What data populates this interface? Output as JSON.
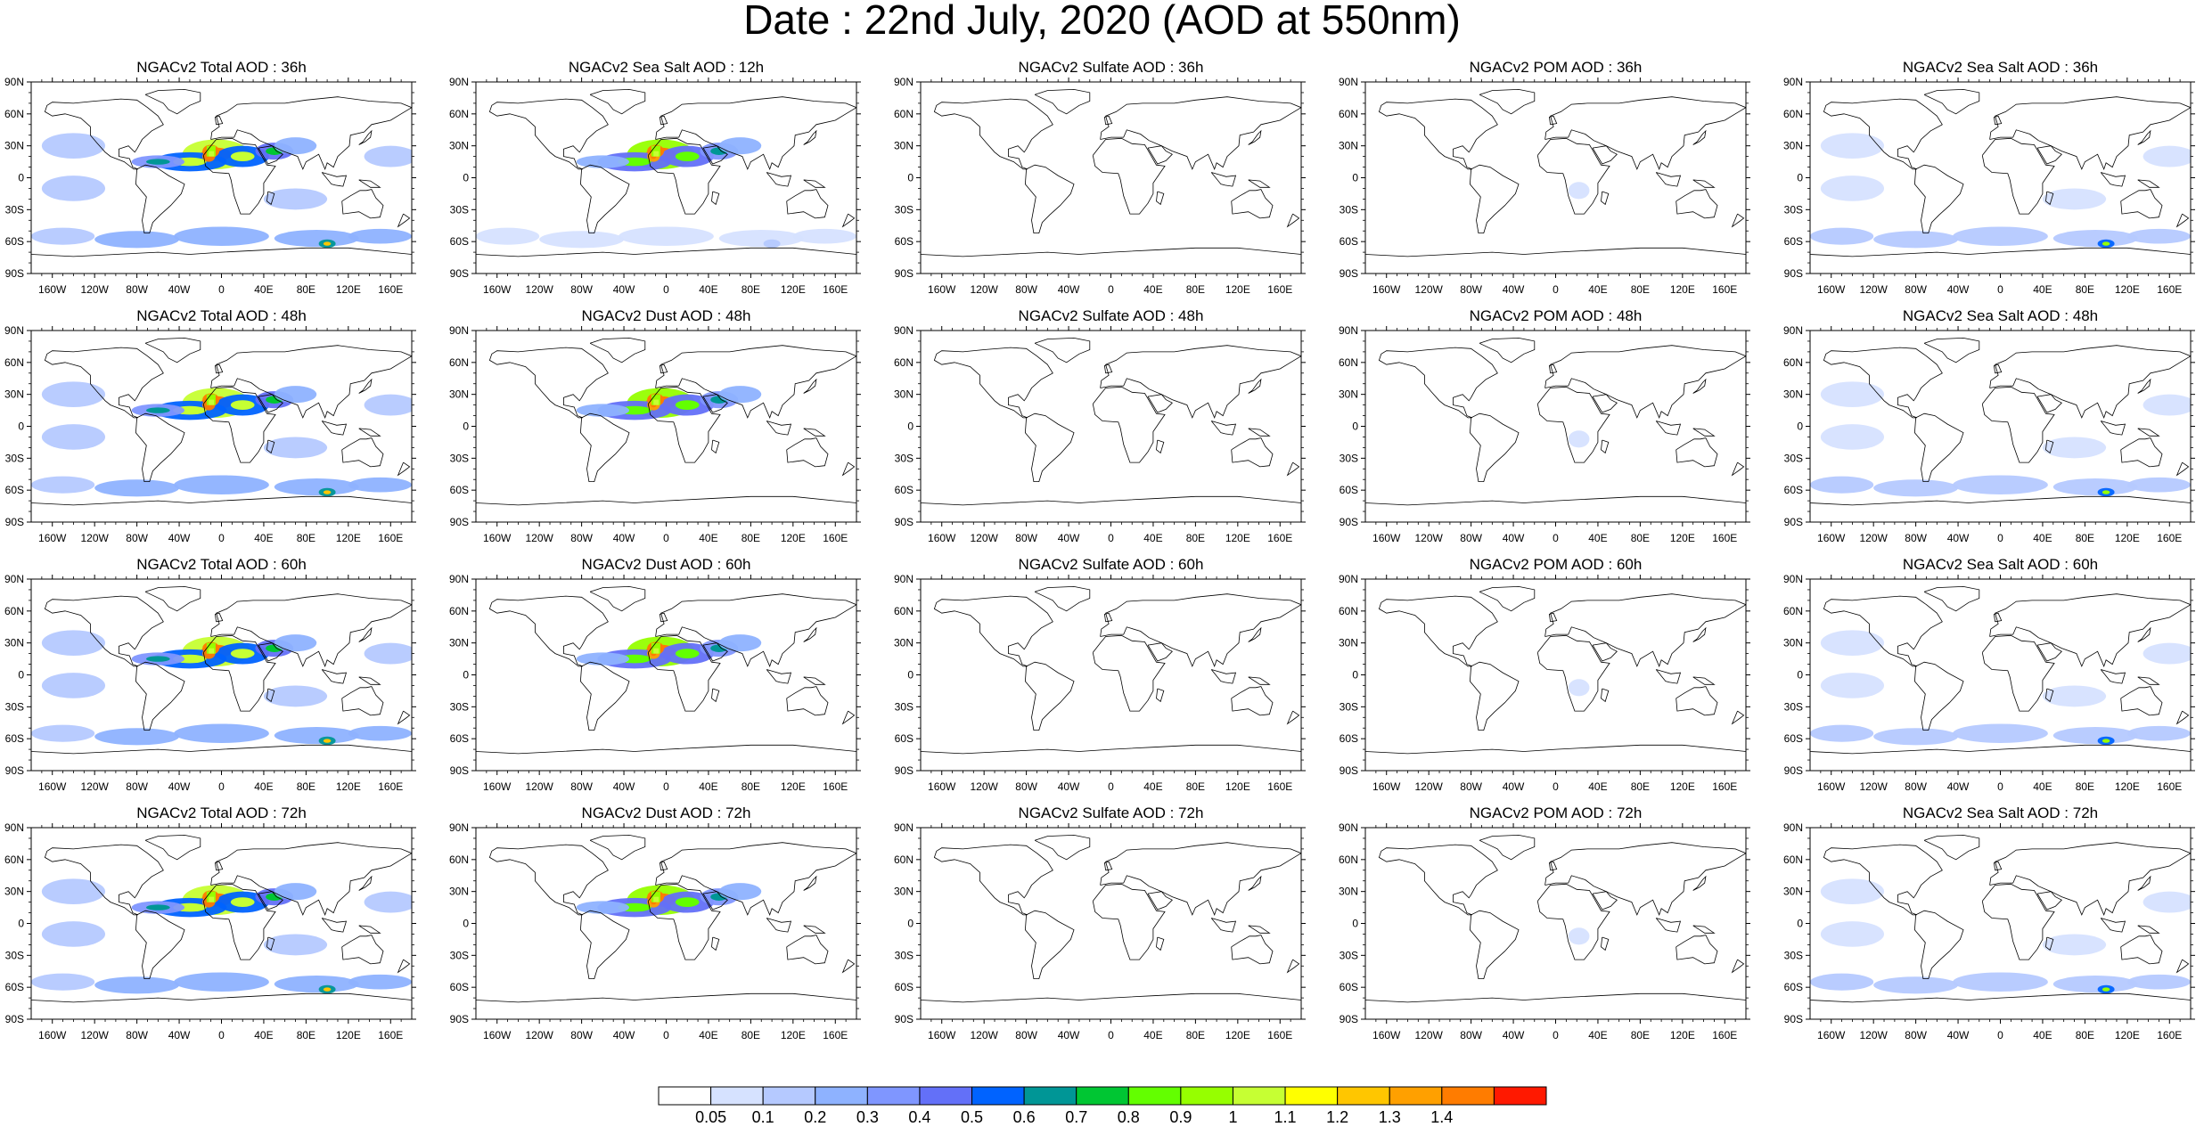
{
  "title": "Date : 22nd July, 2020 (AOD at 550nm)",
  "panels": [
    [
      "NGACv2 Total AOD : 36h",
      "NGACv2 Sea Salt  AOD : 12h",
      "NGACv2 Sulfate AOD : 36h",
      "NGACv2 POM AOD : 36h",
      "NGACv2 Sea Salt AOD : 36h"
    ],
    [
      "NGACv2 Total AOD : 48h",
      "NGACv2 Dust AOD : 48h",
      "NGACv2 Sulfate AOD : 48h",
      "NGACv2 POM AOD : 48h",
      "NGACv2 Sea Salt AOD : 48h"
    ],
    [
      "NGACv2 Total AOD : 60h",
      "NGACv2 Dust AOD : 60h",
      "NGACv2 Sulfate AOD : 60h",
      "NGACv2 POM AOD : 60h",
      "NGACv2 Sea Salt AOD : 60h"
    ],
    [
      "NGACv2 Total AOD : 72h",
      "NGACv2 Dust AOD : 72h",
      "NGACv2 Sulfate AOD : 72h",
      "NGACv2 POM AOD : 72h",
      "NGACv2 Sea Salt  AOD : 72h"
    ]
  ],
  "lat_labels": [
    "90N",
    "60N",
    "30N",
    "0",
    "30S",
    "60S",
    "90S"
  ],
  "lon_labels": [
    "160W",
    "120W",
    "80W",
    "40W",
    "0",
    "40E",
    "80E",
    "120E",
    "160E"
  ],
  "colorbar": {
    "colors": [
      "#ffffff",
      "#d6e2ff",
      "#b5c9ff",
      "#8eb2ff",
      "#7f96ff",
      "#6370f8",
      "#0063ff",
      "#009696",
      "#00c633",
      "#63ff00",
      "#96ff00",
      "#c6ff33",
      "#ffff00",
      "#ffc600",
      "#ffa000",
      "#ff7c00",
      "#ff1900"
    ],
    "labels": [
      "0.05",
      "0.1",
      "0.2",
      "0.3",
      "0.4",
      "0.5",
      "0.6",
      "0.7",
      "0.8",
      "0.9",
      "1",
      "1.1",
      "1.2",
      "1.3",
      "1.4"
    ]
  },
  "fields": {
    "total": {
      "dust": 0.9,
      "seasalt": 0.35,
      "sulfate": 0.1,
      "pom": 0.1
    },
    "dust": {
      "dust": 0.75,
      "seasalt": 0.0,
      "sulfate": 0.0,
      "pom": 0.0
    },
    "seasaltfull": {
      "dust": 0.75,
      "seasalt": 0.1,
      "sulfate": 0.0,
      "pom": 0.0
    },
    "sulfate": {
      "dust": 0.0,
      "seasalt": 0.0,
      "sulfate": 0.12,
      "pom": 0.0
    },
    "pom": {
      "dust": 0.0,
      "seasalt": 0.0,
      "sulfate": 0.0,
      "pom": 0.12
    },
    "seasalt": {
      "dust": 0.0,
      "seasalt": 0.28,
      "sulfate": 0.0,
      "pom": 0.0
    }
  },
  "panel_fields": [
    [
      "total",
      "seasaltfull",
      "sulfate",
      "pom",
      "seasalt"
    ],
    [
      "total",
      "dust",
      "sulfate",
      "pom",
      "seasalt"
    ],
    [
      "total",
      "dust",
      "sulfate",
      "pom",
      "seasalt"
    ],
    [
      "total",
      "dust",
      "sulfate",
      "pom",
      "seasalt"
    ]
  ]
}
